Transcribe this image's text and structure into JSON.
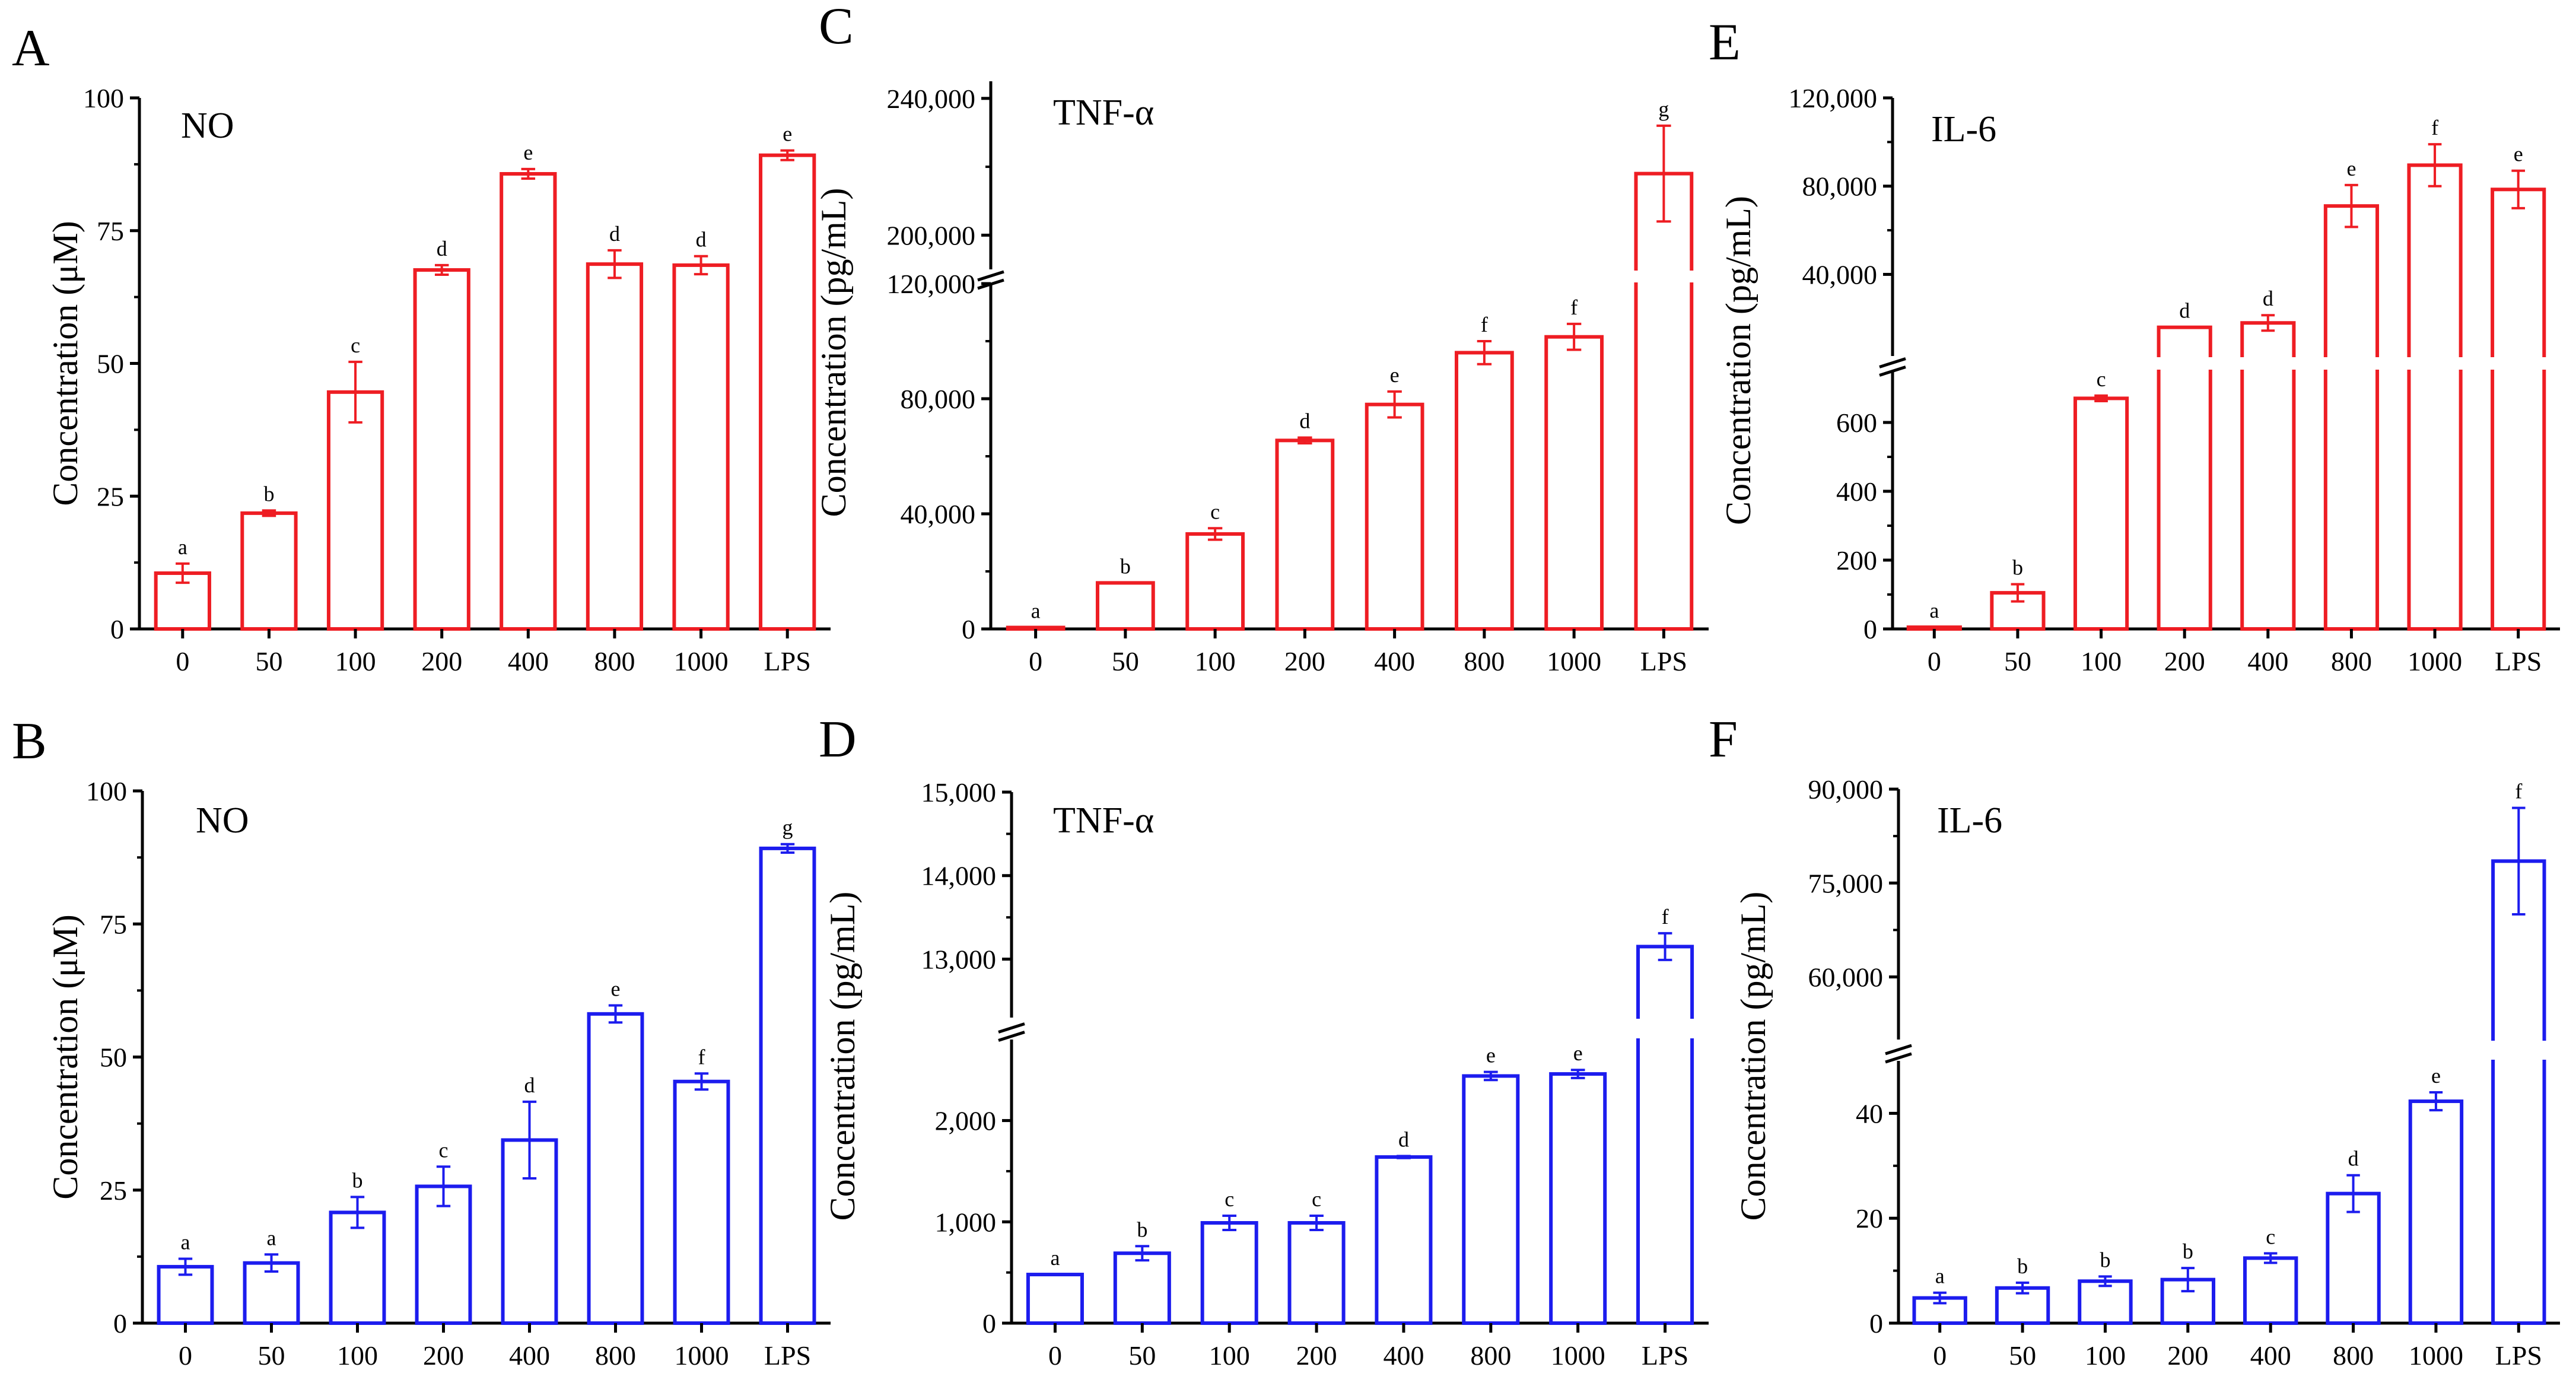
{
  "chart_data": [
    {
      "panel": "A",
      "type": "bar",
      "series_label": "NO",
      "color": "#ee1d23",
      "categories": [
        "0",
        "50",
        "100",
        "200",
        "400",
        "800",
        "1000",
        "LPS"
      ],
      "values": [
        10.5,
        21.8,
        44.6,
        67.6,
        85.7,
        68.7,
        68.5,
        89.2
      ],
      "errors": [
        1.8,
        0.5,
        5.7,
        0.9,
        0.9,
        2.6,
        1.7,
        0.9
      ],
      "sig_letters": [
        "a",
        "b",
        "c",
        "d",
        "e",
        "d",
        "d",
        "e"
      ],
      "ylabel": "Concentration (μM)",
      "segments": [
        {
          "range": [
            0,
            100
          ],
          "ticks": [
            0,
            25,
            50,
            75,
            100
          ],
          "tick_labels": [
            "0",
            "25",
            "50",
            "75",
            "100"
          ]
        }
      ]
    },
    {
      "panel": "B",
      "type": "bar",
      "series_label": "NO",
      "color": "#1c1cee",
      "categories": [
        "0",
        "50",
        "100",
        "200",
        "400",
        "800",
        "1000",
        "LPS"
      ],
      "values": [
        10.6,
        11.3,
        20.8,
        25.7,
        34.4,
        58.1,
        45.4,
        89.2
      ],
      "errors": [
        1.5,
        1.6,
        2.9,
        3.7,
        7.2,
        1.6,
        1.5,
        0.8
      ],
      "sig_letters": [
        "a",
        "a",
        "b",
        "c",
        "d",
        "e",
        "f",
        "g"
      ],
      "ylabel": "Concentration (μM)",
      "segments": [
        {
          "range": [
            0,
            100
          ],
          "ticks": [
            0,
            25,
            50,
            75,
            100
          ],
          "tick_labels": [
            "0",
            "25",
            "50",
            "75",
            "100"
          ]
        }
      ]
    },
    {
      "panel": "C",
      "type": "bar",
      "series_label": "TNF-α",
      "color": "#ee1d23",
      "categories": [
        "0",
        "50",
        "100",
        "200",
        "400",
        "800",
        "1000",
        "LPS"
      ],
      "values": [
        500,
        16000,
        33000,
        65500,
        78000,
        96000,
        101500,
        218000
      ],
      "errors": [
        0,
        0,
        2000,
        1000,
        4500,
        4000,
        4500,
        14000
      ],
      "sig_letters": [
        "a",
        "b",
        "c",
        "d",
        "e",
        "f",
        "f",
        "g"
      ],
      "ylabel": "Concentration (pg/mL)",
      "segments": [
        {
          "range": [
            0,
            120000
          ],
          "ticks": [
            0,
            40000,
            80000,
            120000
          ],
          "tick_labels": [
            "0",
            "40,000",
            "80,000",
            "120,000"
          ]
        },
        {
          "range": [
            190000,
            245000
          ],
          "ticks": [
            200000,
            240000
          ],
          "tick_labels": [
            "200,000",
            "240,000"
          ]
        }
      ]
    },
    {
      "panel": "D",
      "type": "bar",
      "series_label": "TNF-α",
      "color": "#1c1cee",
      "categories": [
        "0",
        "50",
        "100",
        "200",
        "400",
        "800",
        "1000",
        "LPS"
      ],
      "values": [
        480,
        690,
        990,
        990,
        1640,
        2440,
        2460,
        13150
      ],
      "errors": [
        0,
        70,
        70,
        70,
        10,
        40,
        40,
        160
      ],
      "sig_letters": [
        "a",
        "b",
        "c",
        "c",
        "d",
        "e",
        "e",
        "f"
      ],
      "ylabel": "Concentration (pg/mL)",
      "segments": [
        {
          "range": [
            0,
            2800
          ],
          "ticks": [
            0,
            1000,
            2000
          ],
          "tick_labels": [
            "0",
            "1,000",
            "2,000"
          ]
        },
        {
          "range": [
            12300,
            15000
          ],
          "ticks": [
            13000,
            14000,
            15000
          ],
          "tick_labels": [
            "13,000",
            "14,000",
            "15,000"
          ]
        }
      ]
    },
    {
      "panel": "E",
      "type": "bar",
      "series_label": "IL-6",
      "color": "#ee1d23",
      "categories": [
        "0",
        "50",
        "100",
        "200",
        "400",
        "800",
        "1000",
        "LPS"
      ],
      "values": [
        5,
        105,
        670,
        16000,
        18000,
        71000,
        89500,
        78500
      ],
      "errors": [
        0,
        25,
        8,
        0,
        3500,
        9500,
        9500,
        8500
      ],
      "sig_letters": [
        "a",
        "b",
        "c",
        "d",
        "d",
        "e",
        "f",
        "e"
      ],
      "ylabel": "Concentration (pg/mL)",
      "segments": [
        {
          "range": [
            0,
            750
          ],
          "ticks": [
            0,
            200,
            400,
            600
          ],
          "tick_labels": [
            "0",
            "200",
            "400",
            "600"
          ]
        },
        {
          "range": [
            3000,
            120000
          ],
          "ticks": [
            40000,
            80000,
            120000
          ],
          "tick_labels": [
            "40,000",
            "80,000",
            "120,000"
          ]
        }
      ]
    },
    {
      "panel": "F",
      "type": "bar",
      "series_label": "IL-6",
      "color": "#1c1cee",
      "categories": [
        "0",
        "50",
        "100",
        "200",
        "400",
        "800",
        "1000",
        "LPS"
      ],
      "values": [
        4.8,
        6.7,
        8.0,
        8.3,
        12.4,
        24.7,
        42.3,
        78500
      ],
      "errors": [
        1.0,
        1.0,
        0.9,
        2.2,
        0.9,
        3.5,
        1.7,
        8500
      ],
      "sig_letters": [
        "a",
        "b",
        "b",
        "b",
        "c",
        "d",
        "e",
        "f"
      ],
      "ylabel": "Concentration (pg/mL)",
      "segments": [
        {
          "range": [
            0,
            50
          ],
          "ticks": [
            0,
            20,
            40
          ],
          "tick_labels": [
            "0",
            "20",
            "40"
          ]
        },
        {
          "range": [
            50000,
            90000
          ],
          "ticks": [
            60000,
            75000,
            90000
          ],
          "tick_labels": [
            "60,000",
            "75,000",
            "90,000"
          ]
        }
      ]
    }
  ]
}
